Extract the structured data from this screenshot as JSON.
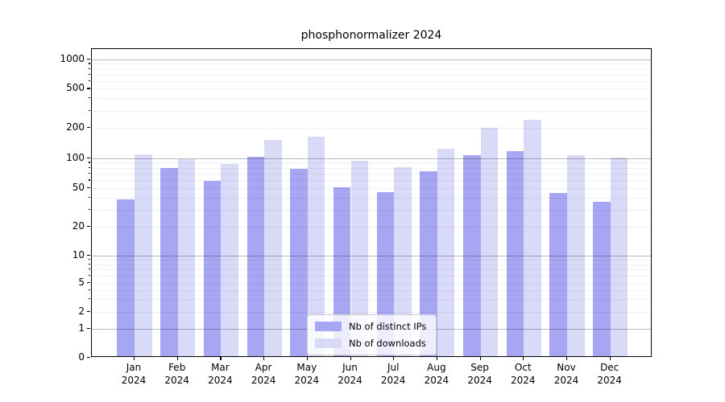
{
  "title": "phosphonormalizer 2024",
  "chart_data": {
    "type": "bar",
    "title": "phosphonormalizer 2024",
    "categories": [
      "Jan",
      "Feb",
      "Mar",
      "Apr",
      "May",
      "Jun",
      "Jul",
      "Aug",
      "Sep",
      "Oct",
      "Nov",
      "Dec"
    ],
    "year_label": "2024",
    "series": [
      {
        "name": "Nb of distinct IPs",
        "color": "#a6a6f3",
        "values": [
          37,
          77,
          57,
          100,
          76,
          49,
          44,
          71,
          104,
          114,
          43,
          35
        ]
      },
      {
        "name": "Nb of downloads",
        "color": "#d9d9f8",
        "values": [
          106,
          95,
          85,
          148,
          158,
          91,
          78,
          120,
          195,
          235,
          103,
          97
        ]
      }
    ],
    "yscale": "symlog",
    "ytick_values": [
      0,
      1,
      2,
      5,
      10,
      20,
      50,
      100,
      200,
      500,
      1000
    ],
    "ytick_labels": [
      "0",
      "1",
      "2",
      "5",
      "10",
      "20",
      "50",
      "100",
      "200",
      "500",
      "1000"
    ],
    "grid": true,
    "legend": {
      "position": "lower-center",
      "labels": [
        "Nb of distinct IPs",
        "Nb of downloads"
      ]
    }
  }
}
